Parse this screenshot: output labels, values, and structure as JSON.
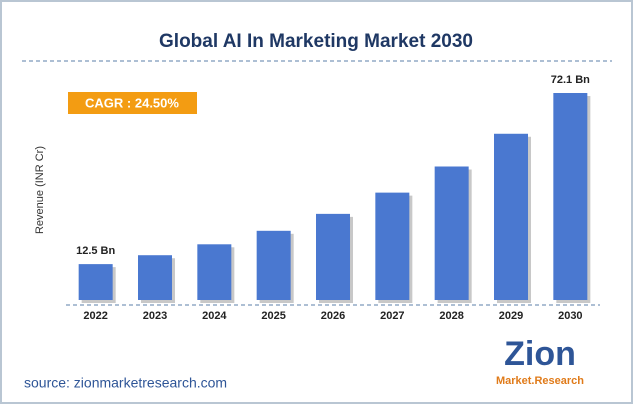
{
  "chart_data": {
    "type": "bar",
    "title": "Global AI In Marketing Market 2030",
    "y_label": "Revenue (INR Cr)",
    "annotation": "CAGR : 24.50%",
    "source": "source: zionmarketresearch.com",
    "logo": {
      "name": "Zion",
      "tagline": "Market.Research"
    },
    "categories": [
      "2022",
      "2023",
      "2024",
      "2025",
      "2026",
      "2027",
      "2028",
      "2029",
      "2030"
    ],
    "values": [
      12.5,
      15.6,
      19.4,
      24.1,
      30.0,
      37.4,
      46.5,
      57.9,
      72.1
    ],
    "value_labels": [
      "12.5 Bn",
      null,
      null,
      null,
      null,
      null,
      null,
      null,
      "72.1 Bn"
    ],
    "color": "#4a78d0"
  }
}
